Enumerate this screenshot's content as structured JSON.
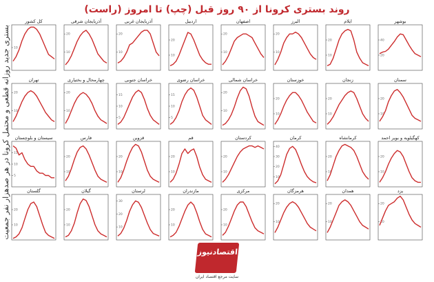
{
  "title": "روند بستری کرونا از ۹۰ روز قبل (چپ) تا امروز (راست)",
  "ylabel": "بستری جدید روزانه قطعی و محتمل کرونا در هر صدهزار نفر جمعیت",
  "logo": {
    "name": "اقتصادنیوز",
    "tagline": "سایت مرجع اقتصاد ایران"
  },
  "colors": {
    "line": "#cc2b2b",
    "title": "#c0282d"
  },
  "chart_data": {
    "type": "line",
    "x_note": "90 days, left = 90 days ago, right = today",
    "panels": [
      {
        "name": "بوشهر",
        "values": [
          22,
          24,
          25,
          28,
          33,
          38,
          44,
          48,
          47,
          40,
          33,
          27,
          22,
          20,
          18
        ],
        "ylim": [
          0,
          60
        ],
        "ticks": [
          20,
          40
        ]
      },
      {
        "name": "ایلام",
        "values": [
          3,
          4,
          8,
          14,
          20,
          24,
          26,
          27,
          26,
          20,
          12,
          8,
          5,
          4,
          3
        ],
        "ylim": [
          0,
          30
        ],
        "ticks": [
          10,
          20
        ]
      },
      {
        "name": "البرز",
        "values": [
          3,
          6,
          10,
          15,
          18,
          20,
          20,
          21,
          20,
          18,
          15,
          12,
          9,
          7,
          6
        ],
        "ylim": [
          0,
          25
        ],
        "ticks": [
          10,
          20
        ]
      },
      {
        "name": "اصفهان",
        "values": [
          3,
          5,
          8,
          12,
          16,
          18,
          19,
          20,
          20,
          19,
          18,
          15,
          12,
          9,
          7
        ],
        "ylim": [
          0,
          25
        ],
        "ticks": [
          10,
          20
        ]
      },
      {
        "name": "اردبیل",
        "values": [
          3,
          4,
          6,
          10,
          15,
          20,
          25,
          24,
          20,
          15,
          10,
          7,
          5,
          4,
          4
        ],
        "ylim": [
          0,
          30
        ],
        "ticks": [
          10,
          20
        ]
      },
      {
        "name": "آذربایجان غربی",
        "values": [
          4,
          5,
          7,
          10,
          14,
          15,
          17,
          19,
          21,
          22,
          22,
          20,
          15,
          10,
          8
        ],
        "ylim": [
          0,
          25
        ],
        "ticks": [
          10,
          20
        ]
      },
      {
        "name": "آذربایجان شرقی",
        "values": [
          3,
          5,
          8,
          12,
          16,
          19,
          21,
          22,
          20,
          17,
          13,
          9,
          7,
          5,
          4
        ],
        "ylim": [
          0,
          25
        ],
        "ticks": [
          10,
          20
        ]
      },
      {
        "name": "کل کشور",
        "values": [
          4,
          6,
          9,
          13,
          16,
          18,
          19,
          19,
          18,
          16,
          13,
          10,
          7,
          6,
          5
        ],
        "ylim": [
          0,
          20
        ],
        "ticks": [
          10,
          20
        ]
      },
      {
        "name": "سمنان",
        "values": [
          5,
          8,
          12,
          18,
          22,
          25,
          26,
          24,
          21,
          17,
          13,
          9,
          7,
          6,
          5
        ],
        "ylim": [
          0,
          30
        ],
        "ticks": [
          10,
          20
        ]
      },
      {
        "name": "زنجان",
        "values": [
          3,
          5,
          8,
          12,
          16,
          19,
          22,
          24,
          25,
          24,
          20,
          15,
          10,
          7,
          5
        ],
        "ylim": [
          0,
          30
        ],
        "ticks": [
          10,
          20
        ]
      },
      {
        "name": "خوزستان",
        "values": [
          3,
          6,
          10,
          15,
          19,
          22,
          24,
          24,
          22,
          19,
          15,
          11,
          8,
          5,
          4
        ],
        "ylim": [
          0,
          30
        ],
        "ticks": [
          10,
          20
        ]
      },
      {
        "name": "خراسان شمالی",
        "values": [
          2,
          3,
          5,
          8,
          12,
          17,
          21,
          23,
          22,
          18,
          12,
          7,
          4,
          3,
          2
        ],
        "ylim": [
          0,
          25
        ],
        "ticks": [
          10,
          20
        ]
      },
      {
        "name": "خراسان رضوی",
        "values": [
          2,
          3,
          5,
          8,
          12,
          15,
          17,
          18,
          17,
          14,
          10,
          6,
          4,
          3,
          2
        ],
        "ylim": [
          0,
          20
        ],
        "ticks": [
          5,
          10,
          15
        ]
      },
      {
        "name": "خراسان جنوبی",
        "values": [
          2,
          3,
          5,
          8,
          11,
          14,
          16,
          17,
          16,
          13,
          9,
          6,
          4,
          3,
          2
        ],
        "ylim": [
          0,
          20
        ],
        "ticks": [
          5,
          10,
          15
        ]
      },
      {
        "name": "چهارمحال و بختیاری",
        "values": [
          3,
          6,
          10,
          14,
          17,
          19,
          20,
          19,
          17,
          14,
          10,
          7,
          5,
          4,
          3
        ],
        "ylim": [
          0,
          25
        ],
        "ticks": [
          10,
          20
        ]
      },
      {
        "name": "تهران",
        "values": [
          4,
          7,
          11,
          15,
          18,
          20,
          21,
          20,
          18,
          15,
          12,
          9,
          7,
          5,
          4
        ],
        "ylim": [
          0,
          25
        ],
        "ticks": [
          10,
          20
        ]
      },
      {
        "name": "کهگیلویه و بویر احمد",
        "values": [
          3,
          6,
          10,
          15,
          19,
          22,
          24,
          23,
          20,
          15,
          10,
          6,
          4,
          3,
          3
        ],
        "ylim": [
          0,
          30
        ],
        "ticks": [
          10,
          20
        ]
      },
      {
        "name": "کرمانشاه",
        "values": [
          4,
          8,
          14,
          20,
          24,
          27,
          28,
          27,
          26,
          24,
          20,
          15,
          10,
          7,
          5
        ],
        "ylim": [
          0,
          30
        ],
        "ticks": [
          10,
          20
        ]
      },
      {
        "name": "کرمان",
        "values": [
          3,
          6,
          12,
          22,
          32,
          38,
          40,
          37,
          30,
          22,
          15,
          10,
          7,
          5,
          4
        ],
        "ylim": [
          0,
          45
        ],
        "ticks": [
          10,
          20,
          30,
          40
        ]
      },
      {
        "name": "کردستان",
        "values": [
          3,
          5,
          8,
          12,
          16,
          20,
          23,
          25,
          26,
          27,
          27,
          26,
          27,
          26,
          25
        ],
        "ylim": [
          0,
          30
        ],
        "ticks": [
          10,
          20
        ]
      },
      {
        "name": "قم",
        "values": [
          3,
          5,
          9,
          15,
          22,
          25,
          22,
          24,
          25,
          20,
          13,
          8,
          5,
          4,
          3
        ],
        "ylim": [
          0,
          30
        ],
        "ticks": [
          10,
          20
        ]
      },
      {
        "name": "قزوین",
        "values": [
          3,
          6,
          11,
          17,
          22,
          26,
          28,
          27,
          23,
          17,
          11,
          7,
          5,
          4,
          3
        ],
        "ylim": [
          0,
          30
        ],
        "ticks": [
          10,
          20
        ]
      },
      {
        "name": "فارس",
        "values": [
          4,
          7,
          12,
          18,
          23,
          26,
          27,
          25,
          21,
          16,
          11,
          7,
          5,
          4,
          3
        ],
        "ylim": [
          0,
          30
        ],
        "ticks": [
          10,
          20
        ]
      },
      {
        "name": "سیستان و بلوچستان",
        "values": [
          18,
          17,
          14,
          15,
          12,
          10,
          9,
          9,
          7,
          6,
          6,
          5,
          5,
          4,
          4
        ],
        "ylim": [
          0,
          20
        ],
        "ticks": [
          5,
          10,
          15
        ]
      },
      {
        "name": "یزد",
        "values": [
          8,
          12,
          16,
          19,
          20,
          21,
          23,
          24,
          22,
          18,
          14,
          11,
          9,
          8,
          7
        ],
        "ylim": [
          0,
          25
        ],
        "ticks": [
          10,
          20
        ]
      },
      {
        "name": "همدان",
        "values": [
          4,
          7,
          11,
          15,
          19,
          21,
          22,
          21,
          19,
          16,
          13,
          10,
          8,
          7,
          6
        ],
        "ylim": [
          0,
          25
        ],
        "ticks": [
          10,
          20
        ]
      },
      {
        "name": "هرمزگان",
        "values": [
          4,
          7,
          11,
          15,
          18,
          20,
          21,
          20,
          18,
          15,
          12,
          9,
          7,
          6,
          5
        ],
        "ylim": [
          0,
          25
        ],
        "ticks": [
          10,
          20
        ]
      },
      {
        "name": "مرکزی",
        "values": [
          3,
          5,
          9,
          14,
          19,
          23,
          25,
          25,
          22,
          17,
          12,
          8,
          6,
          5,
          4
        ],
        "ylim": [
          0,
          30
        ],
        "ticks": [
          10,
          20
        ]
      },
      {
        "name": "مازندران",
        "values": [
          2,
          3,
          5,
          9,
          14,
          19,
          23,
          25,
          23,
          18,
          12,
          7,
          4,
          3,
          2
        ],
        "ylim": [
          0,
          30
        ],
        "ticks": [
          10,
          20
        ]
      },
      {
        "name": "لرستان",
        "values": [
          3,
          5,
          9,
          15,
          22,
          27,
          30,
          29,
          25,
          19,
          13,
          8,
          5,
          4,
          3
        ],
        "ylim": [
          0,
          35
        ],
        "ticks": [
          10,
          20,
          30
        ]
      },
      {
        "name": "گیلان",
        "values": [
          2,
          3,
          6,
          11,
          18,
          24,
          27,
          26,
          22,
          16,
          10,
          6,
          4,
          3,
          2
        ],
        "ylim": [
          0,
          30
        ],
        "ticks": [
          10,
          20
        ]
      },
      {
        "name": "گلستان",
        "values": [
          1,
          2,
          4,
          8,
          14,
          20,
          24,
          25,
          22,
          16,
          10,
          5,
          3,
          2,
          1
        ],
        "ylim": [
          0,
          30
        ],
        "ticks": [
          10,
          20
        ]
      }
    ]
  }
}
